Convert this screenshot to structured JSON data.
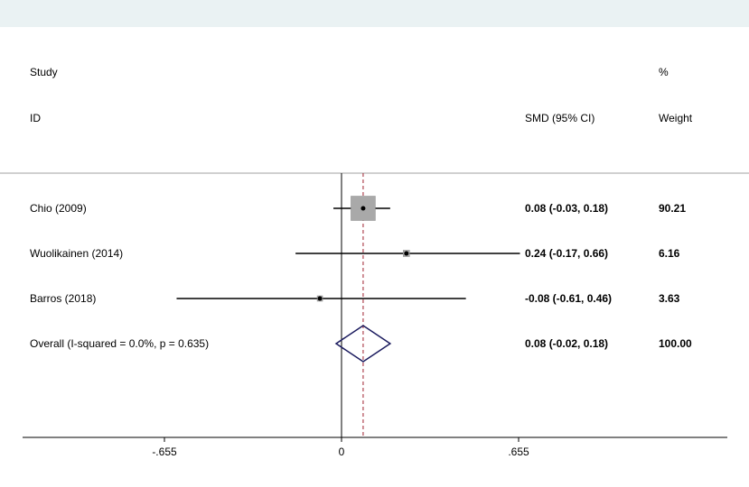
{
  "chart_data": {
    "type": "forest",
    "header": {
      "study_line1": "Study",
      "study_line2": "ID",
      "effect_label": "SMD (95% CI)",
      "weight_line1": "%",
      "weight_line2": "Weight"
    },
    "studies": [
      {
        "label": "Chio (2009)",
        "smd": 0.08,
        "lower": -0.03,
        "upper": 0.18,
        "ci_text": "0.08 (-0.03, 0.18)",
        "weight": "90.21"
      },
      {
        "label": "Wuolikainen (2014)",
        "smd": 0.24,
        "lower": -0.17,
        "upper": 0.66,
        "ci_text": "0.24 (-0.17, 0.66)",
        "weight": "6.16"
      },
      {
        "label": "Barros (2018)",
        "smd": -0.08,
        "lower": -0.61,
        "upper": 0.46,
        "ci_text": "-0.08 (-0.61, 0.46)",
        "weight": "3.63"
      }
    ],
    "overall": {
      "label": "Overall  (I-squared = 0.0%, p = 0.635)",
      "smd": 0.08,
      "lower": -0.02,
      "upper": 0.18,
      "ci_text": "0.08 (-0.02, 0.18)",
      "weight": "100.00"
    },
    "x_ticks": [
      {
        "value": -0.655,
        "label": "-.655"
      },
      {
        "value": 0,
        "label": "0"
      },
      {
        "value": 0.655,
        "label": ".655"
      }
    ],
    "null_line": 0,
    "overall_line": 0.08,
    "colors": {
      "box": "#a9a9a9",
      "diamond": "#1a1a5e",
      "overall_line": "#a02030",
      "axis": "#000000"
    }
  }
}
